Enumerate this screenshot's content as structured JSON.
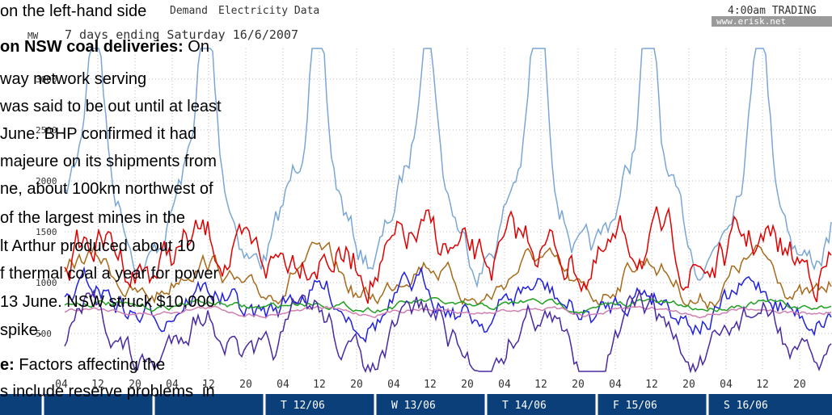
{
  "image": {
    "title_behind": "Demand",
    "title": "Electricity Data",
    "unit": "MW",
    "subtitle": "7 days ending Saturday 16/6/2007",
    "trading": "4:00am TRADING",
    "site": "www.erisk.net",
    "y_labels": [
      "500",
      "1000",
      "1500",
      "2000",
      "2500",
      "3000"
    ],
    "hours": [
      "04",
      "12",
      "20"
    ],
    "days": [
      "T 12/06",
      "W 13/06",
      "T 14/06",
      "F 15/06",
      "S 16/06"
    ]
  },
  "article": {
    "lines": [
      "on the left-hand side",
      "way network serving",
      "was said to be out until at least",
      "June. BHP confirmed it had",
      "majeure on its shipments from",
      "ne, about 100km northwest of",
      "of the largest mines in the",
      "lt Arthur produced about 10",
      "f thermal coal a year for power",
      "13 June. NSW struck $10,000",
      "spike."
    ],
    "heading1": "on NSW coal deliveries:",
    "heading1_rest": "On",
    "heading2": "e:",
    "heading2_rest": "Factors affecting the",
    "last_line": "s include reserve problems  in"
  }
}
